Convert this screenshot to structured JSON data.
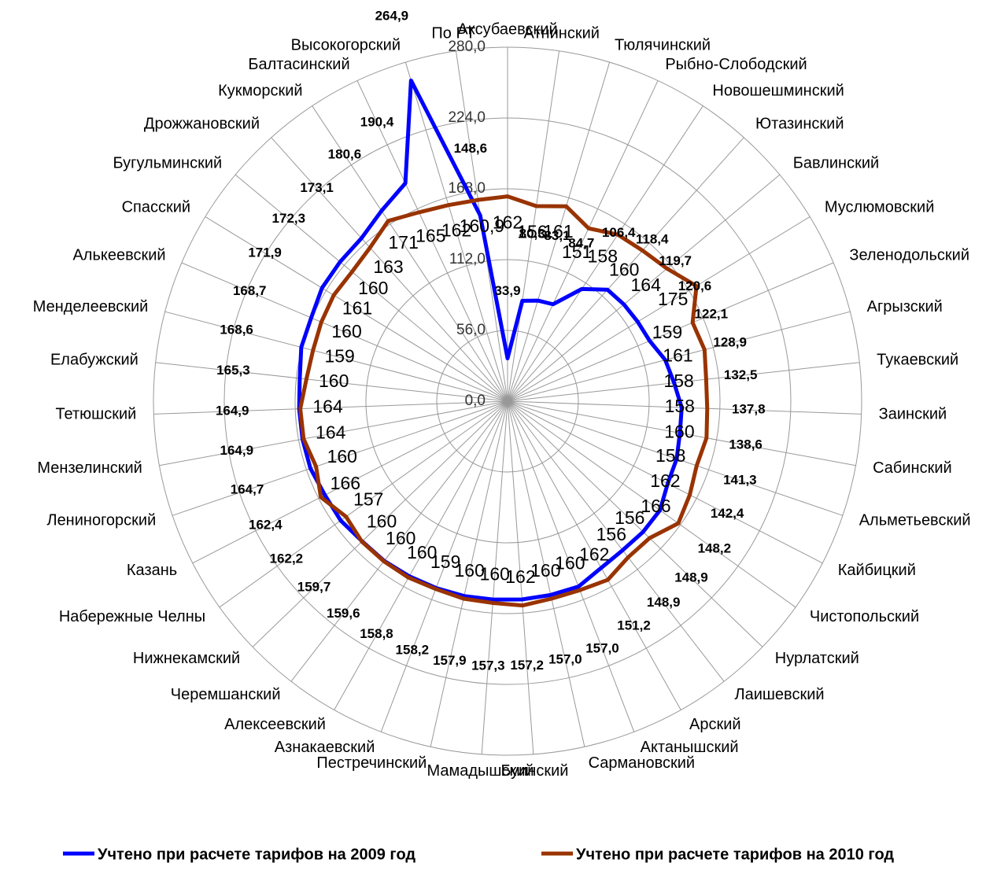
{
  "chart_data": {
    "type": "radar",
    "categories": [
      "Аксубаевский",
      "Атнинский",
      "Тюлячинский",
      "Рыбно-Слободский",
      "Новошешминский",
      "Ютазинский",
      "Бавлинский",
      "Муслюмовский",
      "Зеленодольский",
      "Агрызский",
      "Тукаевский",
      "Заинский",
      "Сабинский",
      "Альметьевский",
      "Кайбицкий",
      "Чистопольский",
      "Нурлатский",
      "Лаишевский",
      "Арский",
      "Актанышский",
      "Сармановский",
      "Буинский",
      "Мамадышский",
      "Пестречинский",
      "Азнакаевский",
      "Алексеевский",
      "Черемшанский",
      "Нижнекамский",
      "Набережные Челны",
      "Казань",
      "Лениногорский",
      "Мензелинский",
      "Тетюшский",
      "Елабужский",
      "Менделеевский",
      "Алькеевский",
      "Спасский",
      "Бугульминский",
      "Дрожжановский",
      "Кукморский",
      "Балтасинский",
      "Высокогорский",
      "По РТ"
    ],
    "series": [
      {
        "name": "Учтено при расчете тарифов на 2009 год",
        "color": "#0000ff",
        "values": [
          33.9,
          80.3,
          83.1,
          84.7,
          106.4,
          118.4,
          119.7,
          120.6,
          122.1,
          128.9,
          132.5,
          137.8,
          138.6,
          141.3,
          142.4,
          148.2,
          148.9,
          148.9,
          151.2,
          157.0,
          157.0,
          157.2,
          157.3,
          157.9,
          158.2,
          158.8,
          159.6,
          159.7,
          162.2,
          162.4,
          164.7,
          164.9,
          164.9,
          165.3,
          168.6,
          168.7,
          171.9,
          172.3,
          173.1,
          180.6,
          190.4,
          264.9,
          148.6
        ],
        "value_labels": [
          "33,9",
          "80,3",
          "83,1",
          "84,7",
          "106,4",
          "118,4",
          "119,7",
          "120,6",
          "122,1",
          "128,9",
          "132,5",
          "137,8",
          "138,6",
          "141,3",
          "142,4",
          "148,2",
          "148,9",
          "148,9",
          "151,2",
          "157,0",
          "157,0",
          "157,2",
          "157,3",
          "157,9",
          "158,2",
          "158,8",
          "159,6",
          "159,7",
          "162,2",
          "162,4",
          "164,7",
          "164,9",
          "164,9",
          "165,3",
          "168,6",
          "168,7",
          "171,9",
          "172,3",
          "173,1",
          "180,6",
          "190,4",
          "264,9",
          "148,6"
        ]
      },
      {
        "name": "Учтено при расчете тарифов на 2010 год",
        "color": "#993300",
        "values": [
          162,
          156,
          161,
          151,
          158,
          160,
          164,
          175,
          159,
          161,
          158,
          158,
          160,
          158,
          162,
          166,
          156,
          156,
          162,
          160,
          160,
          162,
          160,
          160,
          159,
          160,
          160,
          160,
          157,
          166,
          160,
          164,
          164,
          160,
          159,
          160,
          161,
          160,
          163,
          171,
          165,
          162,
          160.9
        ],
        "value_labels": [
          "162",
          "156",
          "161",
          "151",
          "158",
          "160",
          "164",
          "175",
          "159",
          "161",
          "158",
          "158",
          "160",
          "158",
          "162",
          "166",
          "156",
          "156",
          "162",
          "160",
          "160",
          "162",
          "160",
          "160",
          "159",
          "160",
          "160",
          "160",
          "157",
          "166",
          "160",
          "164",
          "164",
          "160",
          "159",
          "160",
          "161",
          "160",
          "163",
          "171",
          "165",
          "162",
          "160,9"
        ]
      }
    ],
    "ylim": [
      0,
      280
    ],
    "yticks": [
      {
        "value": 0,
        "label": "0,0"
      },
      {
        "value": 56,
        "label": "56,0"
      },
      {
        "value": 112,
        "label": "112,0"
      },
      {
        "value": 168,
        "label": "168,0"
      },
      {
        "value": 224,
        "label": "224,0"
      },
      {
        "value": 280,
        "label": "280,0"
      }
    ],
    "grid": true,
    "legend": "bottom"
  }
}
